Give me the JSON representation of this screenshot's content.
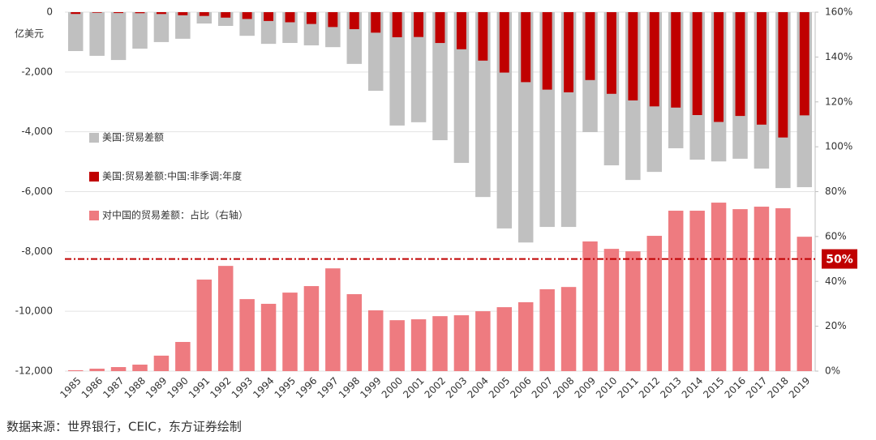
{
  "chart_data": {
    "type": "bar",
    "y_unit": "亿美元",
    "source": "数据来源：世界银行，CEIC，东方证券绘制",
    "categories": [
      "1985",
      "1986",
      "1987",
      "1988",
      "1989",
      "1990",
      "1991",
      "1992",
      "1993",
      "1994",
      "1995",
      "1996",
      "1997",
      "1998",
      "1999",
      "2000",
      "2001",
      "2002",
      "2003",
      "2004",
      "2005",
      "2006",
      "2007",
      "2008",
      "2009",
      "2010",
      "2011",
      "2012",
      "2013",
      "2014",
      "2015",
      "2016",
      "2017",
      "2018",
      "2019"
    ],
    "series": [
      {
        "name": "美国:贸易差额",
        "color": "#c0c0c0",
        "axis": "y",
        "values": [
          -1300,
          -1460,
          -1600,
          -1220,
          -1000,
          -890,
          -380,
          -460,
          -790,
          -1060,
          -1030,
          -1110,
          -1170,
          -1730,
          -2630,
          -3790,
          -3680,
          -4280,
          -5040,
          -6180,
          -7230,
          -7700,
          -7180,
          -7180,
          -4010,
          -5120,
          -5610,
          -5340,
          -4550,
          -4930,
          -4990,
          -4900,
          -5230,
          -5880,
          -5850
        ]
      },
      {
        "name": "美国:贸易差额:中国:非季调:年度",
        "color": "#c00000",
        "axis": "y",
        "values": [
          -60,
          -20,
          -30,
          -35,
          -62,
          -104,
          -127,
          -183,
          -228,
          -295,
          -338,
          -395,
          -497,
          -569,
          -686,
          -838,
          -831,
          -1031,
          -1240,
          -1620,
          -2020,
          -2340,
          -2590,
          -2680,
          -2270,
          -2730,
          -2950,
          -3150,
          -3190,
          -3440,
          -3670,
          -3470,
          -3760,
          -4190,
          -3450
        ]
      },
      {
        "name": "对中国的贸易差额：占比（右轴）",
        "color": "#ee7b80",
        "axis": "y2",
        "values": [
          0.4,
          1.1,
          1.8,
          2.9,
          6.9,
          13,
          40.8,
          46.9,
          32.1,
          30,
          35,
          37.9,
          45.8,
          34.3,
          27.1,
          22.7,
          23.1,
          24.5,
          24.9,
          26.7,
          28.5,
          30.7,
          36.5,
          37.5,
          57.8,
          54.5,
          53.4,
          60.3,
          71.5,
          71.5,
          75.1,
          72.2,
          73.3,
          72.6,
          59.9
        ]
      }
    ],
    "ylim": [
      -12000,
      0
    ],
    "yticks": [
      {
        "value": -12000,
        "label": "-12,000"
      },
      {
        "value": -10000,
        "label": "-10,000"
      },
      {
        "value": -8000,
        "label": "-8,000"
      },
      {
        "value": -6000,
        "label": "-6,000"
      },
      {
        "value": -4000,
        "label": "-4,000"
      },
      {
        "value": -2000,
        "label": "-2,000"
      },
      0
    ],
    "y2lim": [
      0,
      160
    ],
    "y2ticks": [
      {
        "value": 0,
        "label": "0%"
      },
      {
        "value": 20,
        "label": "20%"
      },
      {
        "value": 40,
        "label": "40%"
      },
      {
        "value": 60,
        "label": "60%"
      },
      {
        "value": 80,
        "label": "80%"
      },
      {
        "value": 100,
        "label": "100%"
      },
      {
        "value": 120,
        "label": "120%"
      },
      {
        "value": 140,
        "label": "140%"
      },
      {
        "value": 160,
        "label": "160%"
      }
    ],
    "reference_line": {
      "value": 50,
      "label": "50%",
      "axis": "y2",
      "color": "#c00000"
    },
    "grid": true
  }
}
